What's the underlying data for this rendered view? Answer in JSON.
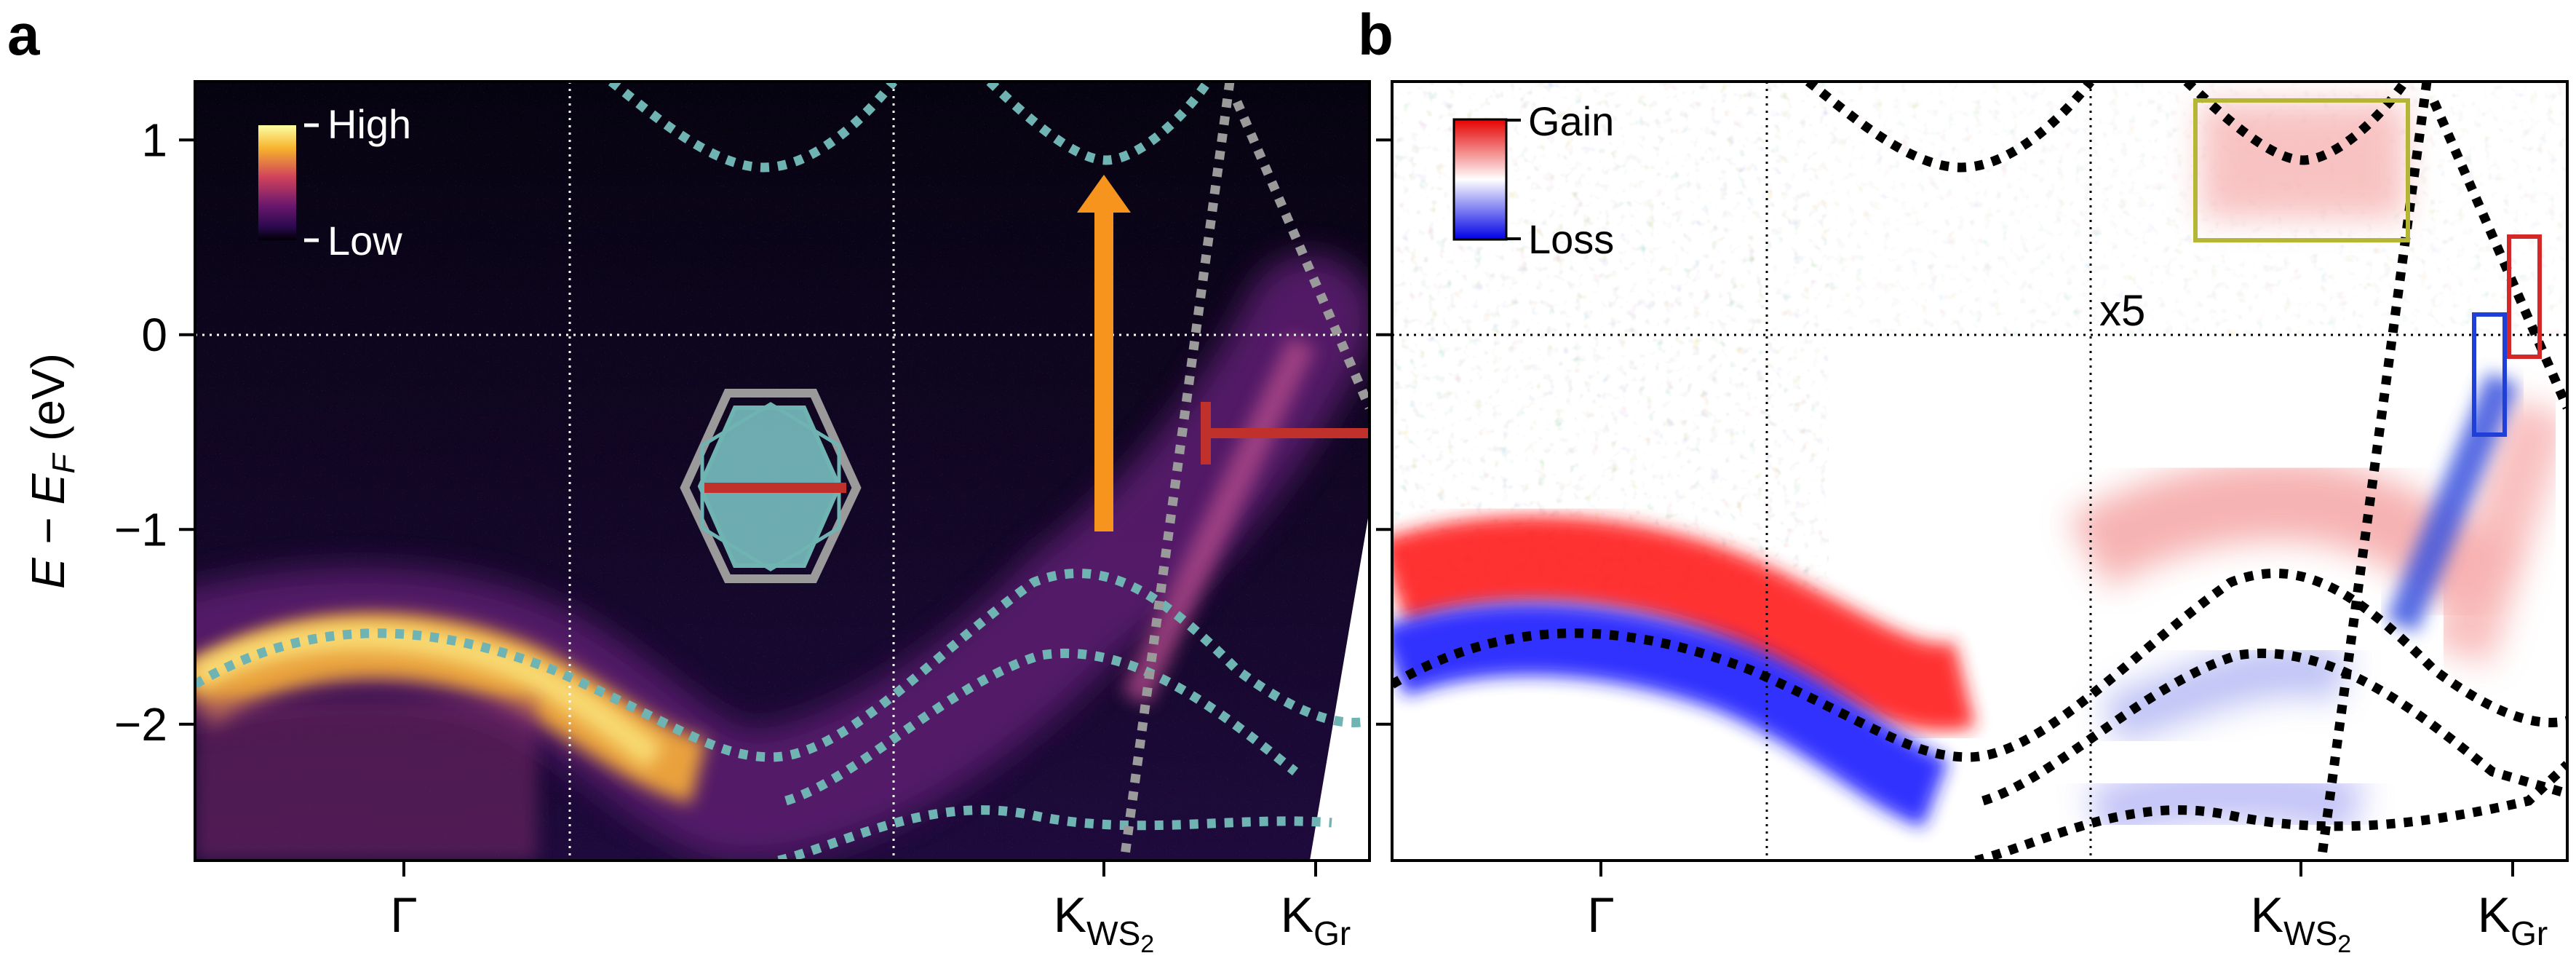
{
  "panel_labels": {
    "a": "a",
    "b": "b"
  },
  "chart_data": [
    {
      "type": "heatmap",
      "panel": "a",
      "title": "",
      "ylabel": "E − E",
      "ylabel_sub": "F",
      "ylabel_unit": " (eV)",
      "ylim": [
        -2.7,
        1.3
      ],
      "y_ticks": [
        {
          "value": 1,
          "label": "1"
        },
        {
          "value": 0,
          "label": "0"
        },
        {
          "value": -1,
          "label": "−1"
        },
        {
          "value": -2,
          "label": "−2"
        }
      ],
      "x_ticks": [
        {
          "label": "Γ",
          "sub": ""
        },
        {
          "label": "K",
          "sub": "WS2"
        },
        {
          "label": "K",
          "sub": "Gr"
        }
      ],
      "colorbar": {
        "high": "High",
        "low": "Low",
        "colormap": "inferno"
      },
      "fermi_level": 0,
      "grid": "dotted-white",
      "band_color": "#6fb3b3",
      "arrow_color": "#f7941d",
      "marker_color": "#c0312b"
    },
    {
      "type": "heatmap",
      "panel": "b",
      "title": "",
      "ylim": [
        -2.7,
        1.3
      ],
      "y_ticks": [
        {
          "value": 1,
          "label": ""
        },
        {
          "value": 0,
          "label": ""
        },
        {
          "value": -1,
          "label": ""
        },
        {
          "value": -2,
          "label": ""
        }
      ],
      "x_ticks": [
        {
          "label": "Γ",
          "sub": ""
        },
        {
          "label": "K",
          "sub": "WS2"
        },
        {
          "label": "K",
          "sub": "Gr"
        }
      ],
      "colorbar": {
        "high": "Gain",
        "low": "Loss",
        "colormap": "bwr"
      },
      "annotation": "x5",
      "fermi_level": 0,
      "grid": "dotted-black",
      "box_colors": [
        "#b5b536",
        "#d62728",
        "#1f3fd6"
      ]
    }
  ]
}
